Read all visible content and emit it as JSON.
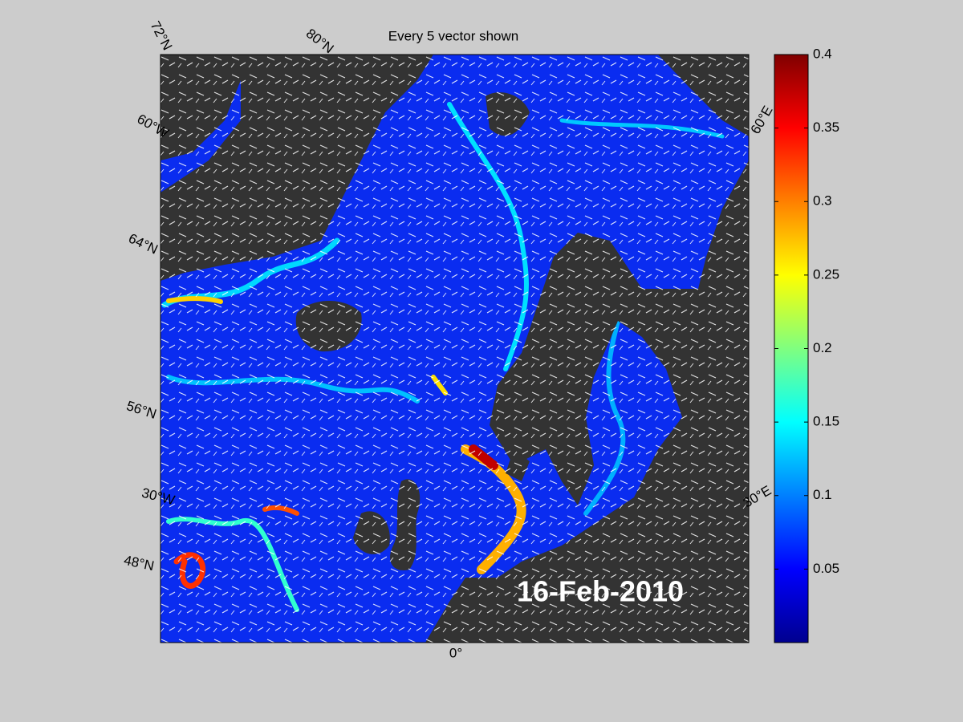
{
  "title": "Every 5 vector shown",
  "date_label": "16-Feb-2010",
  "graticule_labels": [
    "72°N",
    "80°N",
    "60°W",
    "64°N",
    "56°N",
    "30°W",
    "48°N",
    "0°",
    "60°E",
    "30°E"
  ],
  "colorbar": {
    "lim": [
      0,
      0.4
    ],
    "ticks": [
      0.05,
      0.1,
      0.15,
      0.2,
      0.25,
      0.3,
      0.35,
      0.4
    ]
  }
}
